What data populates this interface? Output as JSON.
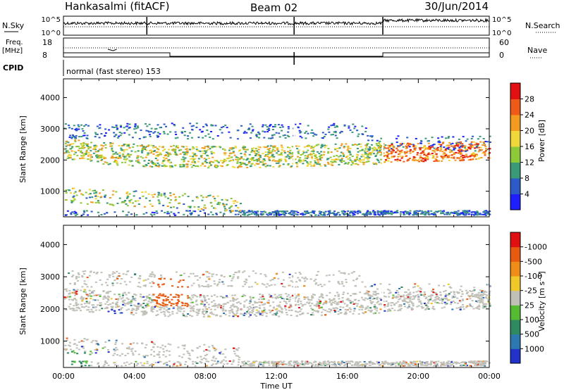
{
  "header": {
    "station": "Hankasalmi (fitACF)",
    "beam": "Beam 02",
    "date": "30/Jun/2014"
  },
  "strip": {
    "nsky_label": "N.Sky",
    "nsky_ticks": [
      "10^5",
      "10^0"
    ],
    "nsearch_label": "N.Search",
    "nsearch_ticks": [
      "10^5",
      "10^0"
    ],
    "freq_label_top": "Freq.",
    "freq_label_unit": "[MHz]",
    "freq_ticks": [
      "18",
      "8"
    ],
    "nave_label": "Nave",
    "nave_ticks": [
      "60",
      "0"
    ],
    "cpid_label": "CPID",
    "cpid_value": "normal (fast stereo) 153"
  },
  "chart_data": [
    {
      "type": "heatmap",
      "name": "power",
      "ylabel": "Slant Range [km]",
      "xlabel": "",
      "x_ticks": [
        "00:00",
        "04:00",
        "08:00",
        "12:00",
        "16:00",
        "20:00",
        "00:00"
      ],
      "y_ticks": [
        1000,
        2000,
        3000,
        4000
      ],
      "ylim": [
        180,
        4600
      ],
      "xlim_hours": [
        0,
        24
      ],
      "colorbar": {
        "label": "Power [dB]",
        "ticks": [
          4,
          8,
          12,
          16,
          20,
          24,
          28
        ],
        "range": [
          0,
          32
        ],
        "colors": [
          "#1e1eff",
          "#2c5ac8",
          "#3a9a78",
          "#8ec93a",
          "#f0d83a",
          "#f39a20",
          "#f05a18",
          "#e21010"
        ]
      }
    },
    {
      "type": "heatmap",
      "name": "velocity",
      "ylabel": "Slant Range [km]",
      "xlabel": "Time UT",
      "x_ticks": [
        "00:00",
        "04:00",
        "08:00",
        "12:00",
        "16:00",
        "20:00",
        "00:00"
      ],
      "y_ticks": [
        1000,
        2000,
        3000,
        4000
      ],
      "ylim": [
        180,
        4600
      ],
      "xlim_hours": [
        0,
        24
      ],
      "colorbar": {
        "label": "Velocity [m s⁻¹]",
        "ticks": [
          "1000",
          "500",
          "100",
          "25",
          "-25",
          "-100",
          "-500",
          "-1000"
        ],
        "colors": [
          "#2233cc",
          "#2d78b0",
          "#2e8a60",
          "#55bb33",
          "#c0c0b8",
          "#f0c828",
          "#f08c18",
          "#e85a10",
          "#e01010"
        ]
      }
    }
  ]
}
